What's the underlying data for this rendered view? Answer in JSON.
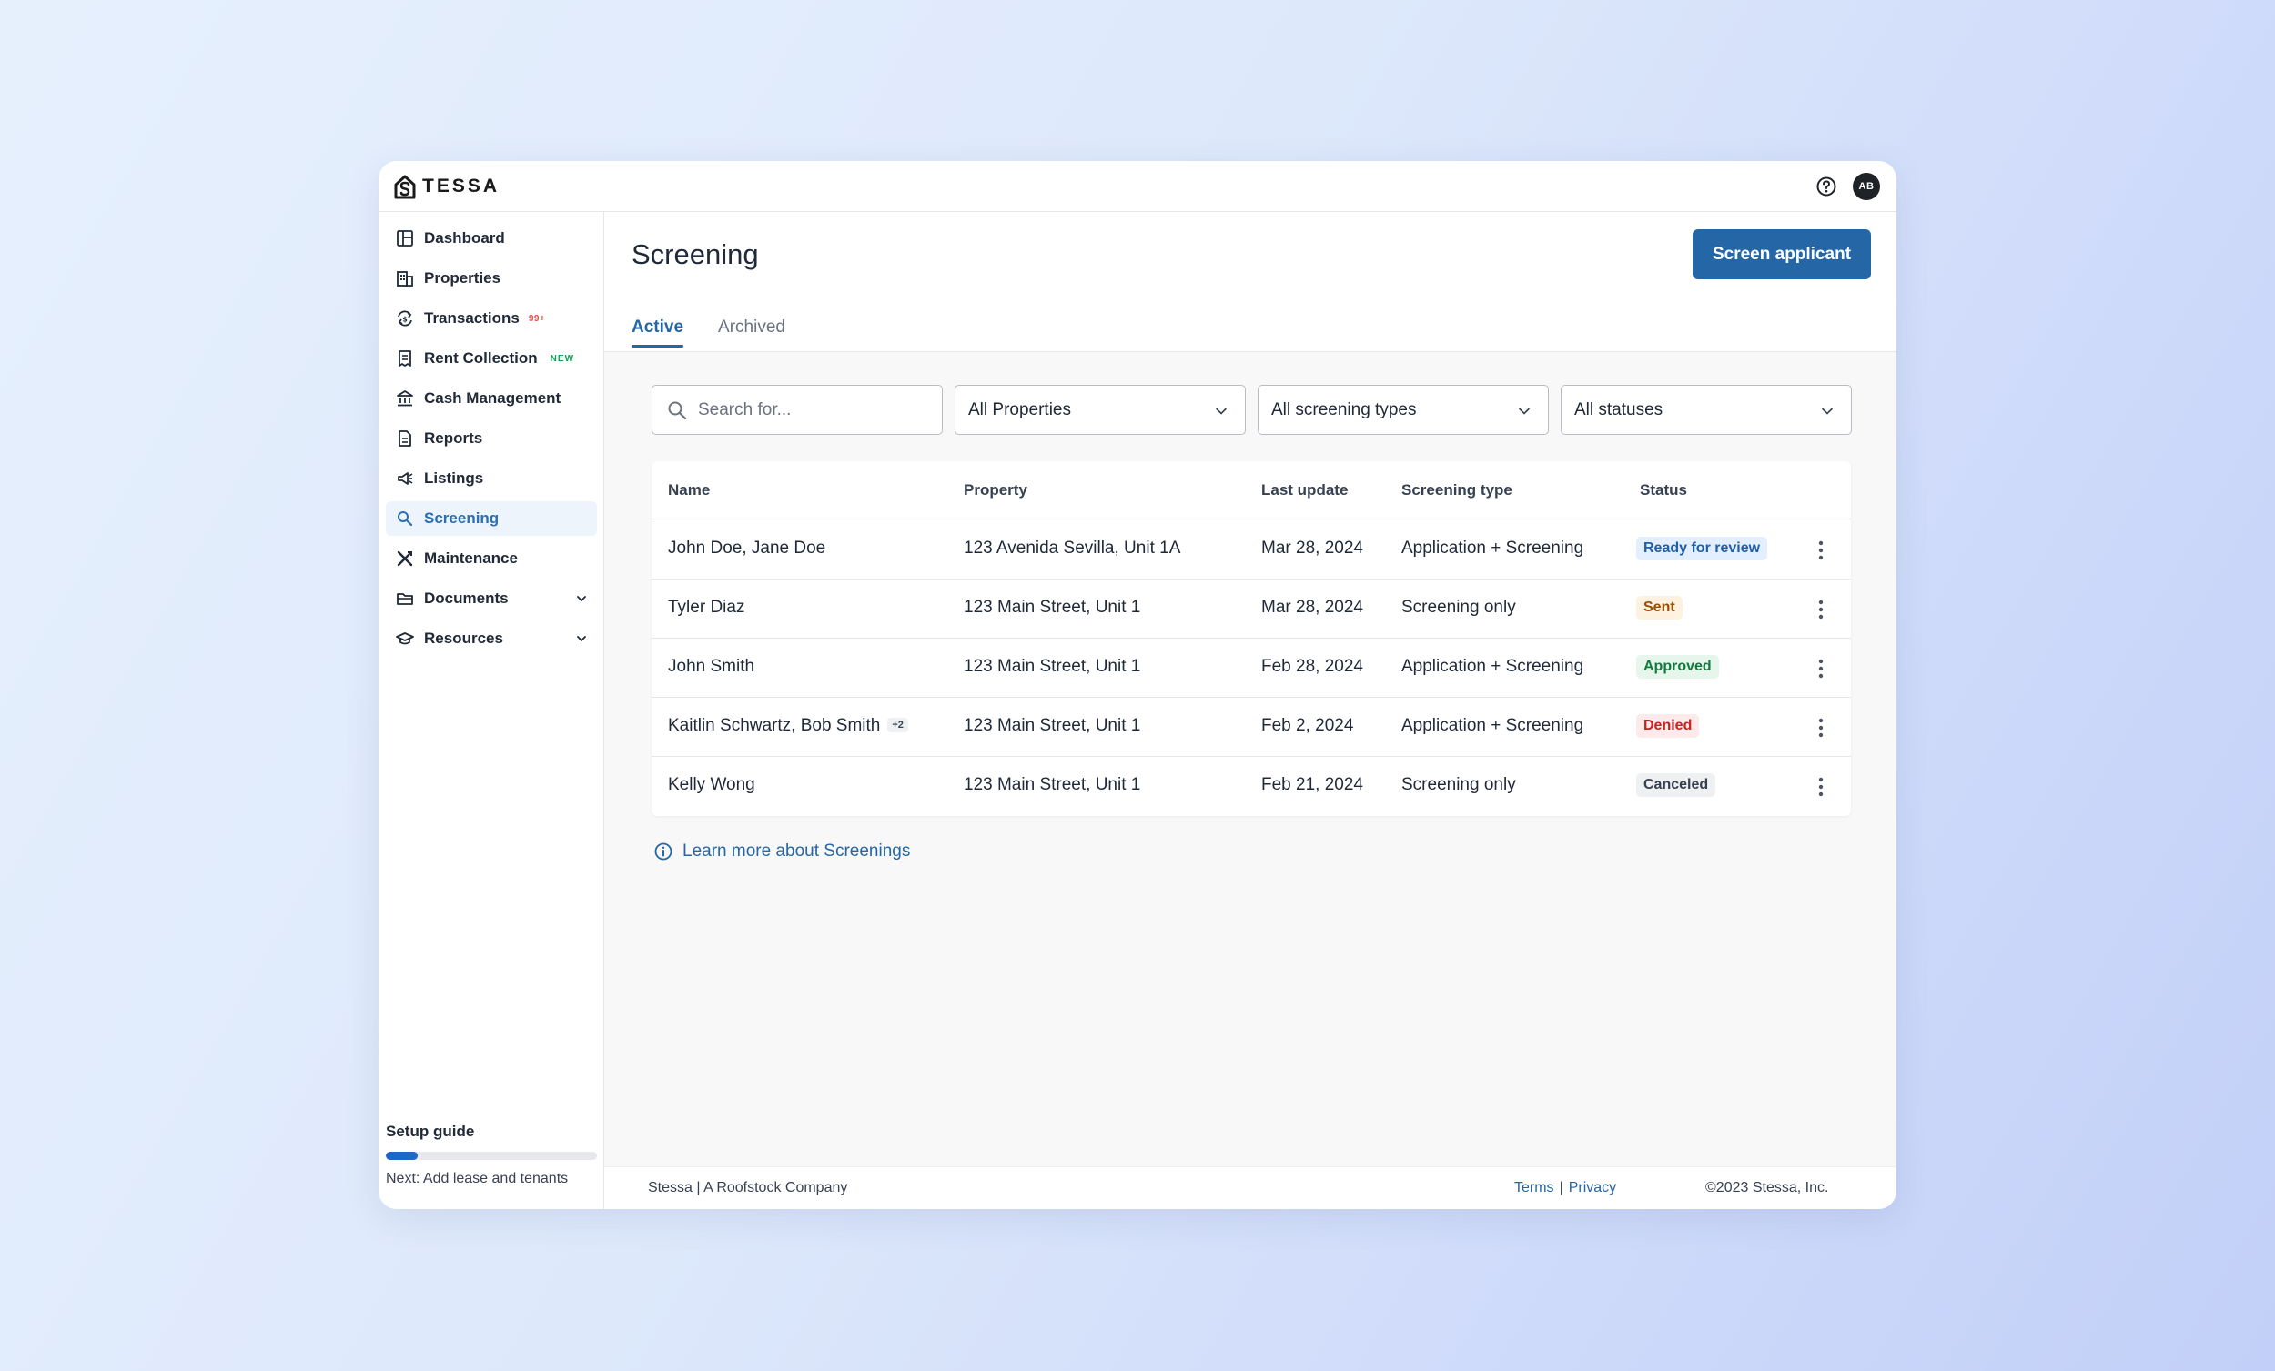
{
  "app": {
    "brand": "TESSA",
    "avatar_initials": "AB"
  },
  "sidebar": {
    "items": [
      {
        "label": "Dashboard",
        "icon": "dashboard-icon"
      },
      {
        "label": "Properties",
        "icon": "building-icon"
      },
      {
        "label": "Transactions",
        "icon": "transactions-icon",
        "badge": "99+"
      },
      {
        "label": "Rent Collection",
        "icon": "receipt-icon",
        "badge": "NEW"
      },
      {
        "label": "Cash Management",
        "icon": "bank-icon"
      },
      {
        "label": "Reports",
        "icon": "report-icon"
      },
      {
        "label": "Listings",
        "icon": "megaphone-icon"
      },
      {
        "label": "Screening",
        "icon": "search-icon",
        "active": true
      },
      {
        "label": "Maintenance",
        "icon": "tools-icon"
      },
      {
        "label": "Documents",
        "icon": "folder-icon",
        "expandable": true
      },
      {
        "label": "Resources",
        "icon": "graduation-cap-icon",
        "expandable": true
      }
    ],
    "setup_guide": {
      "title": "Setup guide",
      "progress": 0.15,
      "next": "Next: Add lease and tenants"
    }
  },
  "main": {
    "title": "Screening",
    "primary_action": "Screen applicant",
    "tabs": [
      {
        "label": "Active",
        "active": true
      },
      {
        "label": "Archived",
        "active": false
      }
    ],
    "filters": {
      "search_placeholder": "Search for...",
      "properties": "All Properties",
      "screening_types": "All screening types",
      "statuses": "All statuses"
    },
    "table": {
      "columns": [
        "Name",
        "Property",
        "Last update",
        "Screening type",
        "Status"
      ],
      "rows": [
        {
          "name": "John Doe, Jane Doe",
          "extra": "",
          "property": "123 Avenida Sevilla, Unit 1A",
          "updated": "Mar 28, 2024",
          "type": "Application + Screening",
          "status": "Ready for review"
        },
        {
          "name": "Tyler Diaz",
          "extra": "",
          "property": "123 Main Street, Unit 1",
          "updated": "Mar 28, 2024",
          "type": "Screening only",
          "status": "Sent"
        },
        {
          "name": "John Smith",
          "extra": "",
          "property": "123 Main Street, Unit 1",
          "updated": "Feb 28, 2024",
          "type": "Application + Screening",
          "status": "Approved"
        },
        {
          "name": "Kaitlin Schwartz, Bob Smith",
          "extra": "+2",
          "property": "123 Main Street, Unit 1",
          "updated": "Feb 2, 2024",
          "type": "Application + Screening",
          "status": "Denied"
        },
        {
          "name": "Kelly Wong",
          "extra": "",
          "property": "123 Main Street, Unit 1",
          "updated": "Feb 21, 2024",
          "type": "Screening only",
          "status": "Canceled"
        }
      ]
    },
    "learn_more": "Learn more about Screenings"
  },
  "footer": {
    "company": "Stessa | A Roofstock Company",
    "terms": "Terms",
    "separator": "|",
    "privacy": "Privacy",
    "copyright": "©2023 Stessa, Inc."
  },
  "colors": {
    "accent": "#2466a6",
    "status": {
      "Ready for review": {
        "fg": "#1f5fa8",
        "bg": "#e3efff"
      },
      "Sent": {
        "fg": "#9a4d00",
        "bg": "#fdf1df"
      },
      "Approved": {
        "fg": "#137a3e",
        "bg": "#e6f6ec"
      },
      "Denied": {
        "fg": "#c62222",
        "bg": "#fdeaea"
      },
      "Canceled": {
        "fg": "#374151",
        "bg": "#eef0f2"
      }
    }
  }
}
